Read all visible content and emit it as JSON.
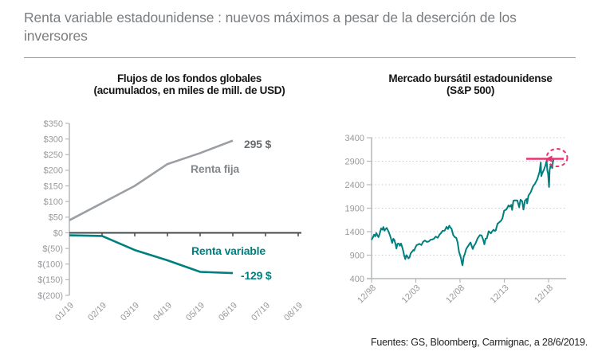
{
  "page": {
    "title": "Renta variable estadounidense : nuevos máximos a pesar de la deserción de los inversores",
    "source": "Fuentes: GS, Bloomberg, Carmignac, a 28/6/2019."
  },
  "colors": {
    "teal": "#007f7f",
    "gray_line": "#9b9fa3",
    "pink": "#e63571",
    "axis_dark": "#44484b",
    "axis_light": "#b4b8ba",
    "grid_dotted": "#c9cccd",
    "tick_label": "#97999c",
    "end_label_gray": "#6a6d70",
    "name_label_gray": "#85888b"
  },
  "chart_data": [
    {
      "type": "line",
      "title": "Flujos de los fondos globales",
      "subtitle": "(acumulados, en miles de mill. de USD)",
      "categories": [
        "01/19",
        "02/19",
        "03/19",
        "04/19",
        "05/19",
        "06/19",
        "07/19",
        "08/19"
      ],
      "y_ticks": [
        "$350",
        "$300",
        "$250",
        "$200",
        "$150",
        "$100",
        "$50",
        "$0",
        "$(50)",
        "$(100)",
        "$(150)",
        "$(200)"
      ],
      "ylim": [
        -200,
        350
      ],
      "grid": false,
      "series": [
        {
          "name": "Renta fija",
          "color": "#9b9fa3",
          "end_label": "295 $",
          "values": [
            40,
            95,
            150,
            220,
            255,
            295
          ]
        },
        {
          "name": "Renta variable",
          "color": "#007f7f",
          "end_label": "-129 $",
          "values": [
            -8,
            -10,
            -55,
            -88,
            -125,
            -129
          ]
        }
      ]
    },
    {
      "type": "line",
      "title": "Mercado bursátil estadounidense",
      "subtitle": "(S&P 500)",
      "x_ticks": [
        "12/98",
        "12/03",
        "12/08",
        "12/13",
        "12/18"
      ],
      "y_ticks": [
        3400,
        2900,
        2400,
        1900,
        1400,
        900,
        400
      ],
      "ylim": [
        400,
        3400
      ],
      "xlim_years": [
        1998.92,
        2020.9
      ],
      "grid": "dotted-horizontal",
      "annotation": {
        "type": "highlight",
        "value": 2950,
        "shape": "hline-arrow-dashed-circle"
      },
      "series": [
        {
          "name": "S&P 500",
          "color": "#007f7f",
          "points": [
            [
              1998.92,
              1229
            ],
            [
              1999.08,
              1280
            ],
            [
              1999.2,
              1335
            ],
            [
              1999.33,
              1300
            ],
            [
              1999.45,
              1372
            ],
            [
              1999.58,
              1320
            ],
            [
              1999.7,
              1283
            ],
            [
              1999.85,
              1362
            ],
            [
              2000.0,
              1469
            ],
            [
              2000.15,
              1441
            ],
            [
              2000.25,
              1499
            ],
            [
              2000.38,
              1420
            ],
            [
              2000.5,
              1455
            ],
            [
              2000.63,
              1480
            ],
            [
              2000.75,
              1436
            ],
            [
              2000.88,
              1380
            ],
            [
              2001.0,
              1320
            ],
            [
              2001.13,
              1240
            ],
            [
              2001.25,
              1160
            ],
            [
              2001.38,
              1250
            ],
            [
              2001.5,
              1224
            ],
            [
              2001.63,
              1133
            ],
            [
              2001.73,
              1041
            ],
            [
              2001.85,
              1140
            ],
            [
              2002.0,
              1148
            ],
            [
              2002.13,
              1100
            ],
            [
              2002.25,
              1147
            ],
            [
              2002.4,
              1060
            ],
            [
              2002.5,
              990
            ],
            [
              2002.6,
              900
            ],
            [
              2002.73,
              815
            ],
            [
              2002.85,
              900
            ],
            [
              2002.95,
              880
            ],
            [
              2003.08,
              830
            ],
            [
              2003.2,
              848
            ],
            [
              2003.35,
              940
            ],
            [
              2003.5,
              975
            ],
            [
              2003.65,
              1010
            ],
            [
              2003.73,
              996
            ],
            [
              2003.85,
              1050
            ],
            [
              2004.0,
              1112
            ],
            [
              2004.17,
              1126
            ],
            [
              2004.33,
              1141
            ],
            [
              2004.55,
              1115
            ],
            [
              2004.75,
              1185
            ],
            [
              2004.95,
              1212
            ],
            [
              2005.17,
              1181
            ],
            [
              2005.4,
              1191
            ],
            [
              2005.6,
              1229
            ],
            [
              2005.8,
              1235
            ],
            [
              2005.95,
              1248
            ],
            [
              2006.17,
              1295
            ],
            [
              2006.4,
              1270
            ],
            [
              2006.6,
              1336
            ],
            [
              2006.8,
              1378
            ],
            [
              2006.95,
              1418
            ],
            [
              2007.17,
              1421
            ],
            [
              2007.4,
              1503
            ],
            [
              2007.55,
              1455
            ],
            [
              2007.7,
              1527
            ],
            [
              2007.85,
              1481
            ],
            [
              2007.95,
              1468
            ],
            [
              2008.15,
              1323
            ],
            [
              2008.35,
              1280
            ],
            [
              2008.5,
              1267
            ],
            [
              2008.65,
              1166
            ],
            [
              2008.8,
              968
            ],
            [
              2008.92,
              903
            ],
            [
              2009.04,
              826
            ],
            [
              2009.12,
              735
            ],
            [
              2009.2,
              683
            ],
            [
              2009.33,
              872
            ],
            [
              2009.45,
              919
            ],
            [
              2009.6,
              1020
            ],
            [
              2009.7,
              1057
            ],
            [
              2009.9,
              1115
            ],
            [
              2010.1,
              1169
            ],
            [
              2010.35,
              1031
            ],
            [
              2010.5,
              1101
            ],
            [
              2010.65,
              1141
            ],
            [
              2010.9,
              1258
            ],
            [
              2011.15,
              1326
            ],
            [
              2011.35,
              1321
            ],
            [
              2011.55,
              1218
            ],
            [
              2011.67,
              1131
            ],
            [
              2011.8,
              1253
            ],
            [
              2011.95,
              1258
            ],
            [
              2012.15,
              1408
            ],
            [
              2012.4,
              1362
            ],
            [
              2012.55,
              1406
            ],
            [
              2012.7,
              1441
            ],
            [
              2012.85,
              1416
            ],
            [
              2012.95,
              1426
            ],
            [
              2013.15,
              1569
            ],
            [
              2013.4,
              1606
            ],
            [
              2013.55,
              1632
            ],
            [
              2013.7,
              1682
            ],
            [
              2013.9,
              1848
            ],
            [
              2014.15,
              1872
            ],
            [
              2014.4,
              1960
            ],
            [
              2014.55,
              1930
            ],
            [
              2014.7,
              1972
            ],
            [
              2014.8,
              1862
            ],
            [
              2014.95,
              2059
            ],
            [
              2015.15,
              2068
            ],
            [
              2015.4,
              2063
            ],
            [
              2015.6,
              1920
            ],
            [
              2015.75,
              2080
            ],
            [
              2015.95,
              2044
            ],
            [
              2016.08,
              1870
            ],
            [
              2016.25,
              2060
            ],
            [
              2016.45,
              2099
            ],
            [
              2016.5,
              2001
            ],
            [
              2016.65,
              2168
            ],
            [
              2016.9,
              2239
            ],
            [
              2017.15,
              2363
            ],
            [
              2017.4,
              2423
            ],
            [
              2017.65,
              2519
            ],
            [
              2017.9,
              2674
            ],
            [
              2018.04,
              2873
            ],
            [
              2018.1,
              2581
            ],
            [
              2018.2,
              2641
            ],
            [
              2018.4,
              2718
            ],
            [
              2018.55,
              2802
            ],
            [
              2018.7,
              2914
            ],
            [
              2018.78,
              2711
            ],
            [
              2018.87,
              2633
            ],
            [
              2018.97,
              2351
            ],
            [
              2019.04,
              2704
            ],
            [
              2019.17,
              2834
            ],
            [
              2019.33,
              2752
            ],
            [
              2019.42,
              2890
            ],
            [
              2019.5,
              2950
            ]
          ]
        }
      ]
    }
  ]
}
